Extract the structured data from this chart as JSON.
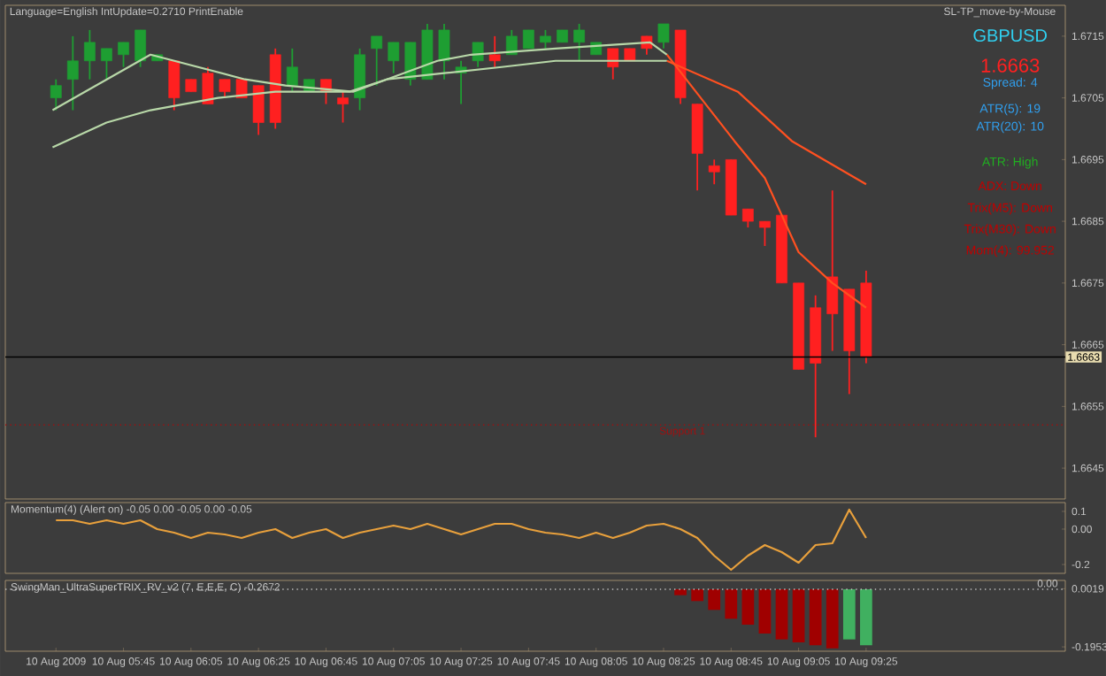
{
  "chart_data": [
    {
      "type": "candlestick",
      "x": [
        "2009-08-10T05:25",
        "2009-08-10T05:30",
        "2009-08-10T05:35",
        "2009-08-10T05:40",
        "2009-08-10T05:45",
        "2009-08-10T05:50",
        "2009-08-10T05:55",
        "2009-08-10T06:00",
        "2009-08-10T06:05",
        "2009-08-10T06:10",
        "2009-08-10T06:15",
        "2009-08-10T06:20",
        "2009-08-10T06:25",
        "2009-08-10T06:30",
        "2009-08-10T06:35",
        "2009-08-10T06:40",
        "2009-08-10T06:45",
        "2009-08-10T06:50",
        "2009-08-10T06:55",
        "2009-08-10T07:00",
        "2009-08-10T07:05",
        "2009-08-10T07:10",
        "2009-08-10T07:15",
        "2009-08-10T07:20",
        "2009-08-10T07:25",
        "2009-08-10T07:30",
        "2009-08-10T07:35",
        "2009-08-10T07:40",
        "2009-08-10T07:45",
        "2009-08-10T07:50",
        "2009-08-10T07:55",
        "2009-08-10T08:00",
        "2009-08-10T08:05",
        "2009-08-10T08:10",
        "2009-08-10T08:15",
        "2009-08-10T08:20",
        "2009-08-10T08:25",
        "2009-08-10T08:30",
        "2009-08-10T08:35",
        "2009-08-10T08:40",
        "2009-08-10T08:45",
        "2009-08-10T08:50",
        "2009-08-10T08:55",
        "2009-08-10T09:00",
        "2009-08-10T09:05",
        "2009-08-10T09:10",
        "2009-08-10T09:15",
        "2009-08-10T09:20",
        "2009-08-10T09:25"
      ],
      "ohlc": [
        [
          1.6705,
          1.6708,
          1.6703,
          1.6707
        ],
        [
          1.6708,
          1.6715,
          1.6703,
          1.6711
        ],
        [
          1.6711,
          1.6716,
          1.6708,
          1.6714
        ],
        [
          1.6711,
          1.6713,
          1.6708,
          1.6713
        ],
        [
          1.6712,
          1.6714,
          1.671,
          1.6714
        ],
        [
          1.6711,
          1.6716,
          1.671,
          1.6716
        ],
        [
          1.6711,
          1.6712,
          1.6711,
          1.6712
        ],
        [
          1.6711,
          1.6711,
          1.6703,
          1.6705
        ],
        [
          1.6708,
          1.6708,
          1.6706,
          1.6706
        ],
        [
          1.6709,
          1.671,
          1.6704,
          1.6704
        ],
        [
          1.6708,
          1.6708,
          1.6705,
          1.6706
        ],
        [
          1.6708,
          1.6708,
          1.6705,
          1.6705
        ],
        [
          1.6707,
          1.6707,
          1.6699,
          1.6701
        ],
        [
          1.6712,
          1.6713,
          1.67,
          1.6701
        ],
        [
          1.6707,
          1.6713,
          1.6706,
          1.671
        ],
        [
          1.6706,
          1.6708,
          1.6706,
          1.6708
        ],
        [
          1.6708,
          1.6708,
          1.6704,
          1.6706
        ],
        [
          1.6705,
          1.6706,
          1.6701,
          1.6704
        ],
        [
          1.6705,
          1.6713,
          1.6703,
          1.6712
        ],
        [
          1.6713,
          1.6715,
          1.6707,
          1.6715
        ],
        [
          1.6711,
          1.6714,
          1.6709,
          1.6714
        ],
        [
          1.6708,
          1.6714,
          1.6707,
          1.6714
        ],
        [
          1.6708,
          1.6717,
          1.6708,
          1.6716
        ],
        [
          1.6711,
          1.6717,
          1.6708,
          1.6716
        ],
        [
          1.6709,
          1.6711,
          1.6704,
          1.671
        ],
        [
          1.6711,
          1.6714,
          1.671,
          1.6714
        ],
        [
          1.6712,
          1.6715,
          1.671,
          1.6711
        ],
        [
          1.6712,
          1.6716,
          1.6712,
          1.6715
        ],
        [
          1.6713,
          1.6716,
          1.6713,
          1.6716
        ],
        [
          1.6714,
          1.6716,
          1.6713,
          1.6715
        ],
        [
          1.6714,
          1.6716,
          1.6714,
          1.6716
        ],
        [
          1.6714,
          1.6717,
          1.6711,
          1.6716
        ],
        [
          1.6712,
          1.6714,
          1.6712,
          1.6714
        ],
        [
          1.6713,
          1.6713,
          1.6708,
          1.671
        ],
        [
          1.6713,
          1.6713,
          1.6711,
          1.6711
        ],
        [
          1.6715,
          1.6715,
          1.6712,
          1.6713
        ],
        [
          1.6714,
          1.6717,
          1.6713,
          1.6717
        ],
        [
          1.6716,
          1.6716,
          1.6704,
          1.6705
        ],
        [
          1.6704,
          1.6704,
          1.669,
          1.6696
        ],
        [
          1.6694,
          1.6695,
          1.6691,
          1.6693
        ],
        [
          1.6695,
          1.6695,
          1.6686,
          1.6686
        ],
        [
          1.6687,
          1.6687,
          1.6684,
          1.6685
        ],
        [
          1.6685,
          1.6685,
          1.6681,
          1.6684
        ],
        [
          1.6686,
          1.6686,
          1.6675,
          1.6675
        ],
        [
          1.6675,
          1.6675,
          1.6661,
          1.6661
        ],
        [
          1.6671,
          1.6673,
          1.665,
          1.6662
        ],
        [
          1.6676,
          1.669,
          1.6664,
          1.667
        ],
        [
          1.6674,
          1.6674,
          1.6657,
          1.6664
        ],
        [
          1.6675,
          1.6677,
          1.6662,
          1.6663
        ]
      ],
      "colors": [
        "#1e9e32",
        "#1e9e32",
        "#1e9e32",
        "#1e9e32",
        "#1e9e32",
        "#1e9e32",
        "#1e9e32",
        "#ff2020",
        "#ff2020",
        "#ff2020",
        "#ff2020",
        "#ff2020",
        "#ff2020",
        "#ff2020",
        "#1e9e32",
        "#1e9e32",
        "#ff2020",
        "#ff2020",
        "#1e9e32",
        "#1e9e32",
        "#1e9e32",
        "#1e9e32",
        "#1e9e32",
        "#1e9e32",
        "#1e9e32",
        "#1e9e32",
        "#ff2020",
        "#1e9e32",
        "#1e9e32",
        "#1e9e32",
        "#1e9e32",
        "#1e9e32",
        "#1e9e32",
        "#ff2020",
        "#ff2020",
        "#ff2020",
        "#1e9e32",
        "#ff2020",
        "#ff2020",
        "#ff2020",
        "#ff2020",
        "#ff2020",
        "#ff2020",
        "#ff2020",
        "#ff2020",
        "#ff2020",
        "#ff2020",
        "#ff2020",
        "#ff2020"
      ],
      "series": [
        {
          "type": "line",
          "color": "#b8d8a8",
          "x": [
            "2009-08-10T05:24",
            "2009-08-10T05:53",
            "2009-08-10T06:21",
            "2009-08-10T06:33",
            "2009-08-10T06:53",
            "2009-08-10T07:03",
            "2009-08-10T07:18",
            "2009-08-10T07:28",
            "2009-08-10T07:53",
            "2009-08-10T08:21",
            "2009-08-10T08:26"
          ],
          "values": [
            1.6703,
            1.6712,
            1.6708,
            1.6707,
            1.6706,
            1.6708,
            1.6711,
            1.6712,
            1.6713,
            1.6714,
            1.6712
          ]
        },
        {
          "type": "line",
          "color": "#ff5020",
          "x": [
            "2009-08-10T08:26",
            "2009-08-10T08:36",
            "2009-08-10T08:46",
            "2009-08-10T08:55",
            "2009-08-10T09:05",
            "2009-08-10T09:15",
            "2009-08-10T09:25"
          ],
          "values": [
            1.6712,
            1.6705,
            1.6698,
            1.6692,
            1.668,
            1.6675,
            1.6671
          ]
        },
        {
          "type": "line",
          "color": "#b8d8a8",
          "x": [
            "2009-08-10T05:24",
            "2009-08-10T05:40",
            "2009-08-10T05:53",
            "2009-08-10T06:13",
            "2009-08-10T06:30",
            "2009-08-10T06:52",
            "2009-08-10T07:03",
            "2009-08-10T07:20",
            "2009-08-10T07:37",
            "2009-08-10T07:53",
            "2009-08-10T08:20",
            "2009-08-10T08:26"
          ],
          "values": [
            1.6697,
            1.6701,
            1.6703,
            1.6705,
            1.6706,
            1.6706,
            1.6708,
            1.6709,
            1.671,
            1.6711,
            1.6711,
            1.6711
          ]
        },
        {
          "type": "line",
          "color": "#ff5020",
          "x": [
            "2009-08-10T08:26",
            "2009-08-10T08:47",
            "2009-08-10T09:03",
            "2009-08-10T09:25"
          ],
          "values": [
            1.6711,
            1.6706,
            1.6698,
            1.6691
          ]
        }
      ],
      "xlim": [
        "2009-08-10T05:10",
        "2009-08-10T10:24"
      ],
      "ylim": [
        1.664,
        1.672
      ],
      "yticks": [
        1.6645,
        1.6655,
        1.6665,
        1.6675,
        1.6685,
        1.6695,
        1.6705,
        1.6715
      ],
      "tick_labels": "y",
      "ref_lines": [
        {
          "axis": "y",
          "value": 1.6663,
          "label": "1.6663",
          "color": "#000000"
        },
        {
          "axis": "y",
          "value": 1.6652,
          "label": "Support 1",
          "color": "#a01010",
          "line_style": "dotted"
        }
      ],
      "annotations": [
        "Language=English IntUpdate=0.2710 PrintEnable",
        "SL-TP_move-by-Mouse",
        "GBPUSD",
        "1.6663",
        "Spread: 4",
        "ATR(5): 19",
        "ATR(20): 10",
        "ATR: High",
        "ADX: Down",
        "Trix(M5): Down",
        "Trix(M30): Down",
        "Mom(4): 99.952"
      ]
    },
    {
      "type": "line",
      "title": "Momentum(4) (Alert on) -0.05 0.00 -0.05 0.00 -0.05",
      "color": "#e8a03c",
      "x": [
        "2009-08-10T05:25",
        "2009-08-10T05:30",
        "2009-08-10T05:35",
        "2009-08-10T05:40",
        "2009-08-10T05:45",
        "2009-08-10T05:50",
        "2009-08-10T05:55",
        "2009-08-10T06:00",
        "2009-08-10T06:05",
        "2009-08-10T06:10",
        "2009-08-10T06:15",
        "2009-08-10T06:20",
        "2009-08-10T06:25",
        "2009-08-10T06:30",
        "2009-08-10T06:35",
        "2009-08-10T06:40",
        "2009-08-10T06:45",
        "2009-08-10T06:50",
        "2009-08-10T06:55",
        "2009-08-10T07:00",
        "2009-08-10T07:05",
        "2009-08-10T07:10",
        "2009-08-10T07:15",
        "2009-08-10T07:20",
        "2009-08-10T07:25",
        "2009-08-10T07:30",
        "2009-08-10T07:35",
        "2009-08-10T07:40",
        "2009-08-10T07:45",
        "2009-08-10T07:50",
        "2009-08-10T07:55",
        "2009-08-10T08:00",
        "2009-08-10T08:05",
        "2009-08-10T08:10",
        "2009-08-10T08:15",
        "2009-08-10T08:20",
        "2009-08-10T08:25",
        "2009-08-10T08:30",
        "2009-08-10T08:35",
        "2009-08-10T08:40",
        "2009-08-10T08:45",
        "2009-08-10T08:50",
        "2009-08-10T08:55",
        "2009-08-10T09:00",
        "2009-08-10T09:05",
        "2009-08-10T09:10",
        "2009-08-10T09:15",
        "2009-08-10T09:20",
        "2009-08-10T09:25"
      ],
      "values": [
        0.05,
        0.05,
        0.03,
        0.05,
        0.03,
        0.05,
        0.0,
        -0.02,
        -0.05,
        -0.02,
        -0.03,
        -0.05,
        -0.02,
        0.0,
        -0.05,
        -0.02,
        0.0,
        -0.05,
        -0.02,
        0.0,
        0.02,
        0.0,
        0.03,
        0.0,
        -0.03,
        0.0,
        0.03,
        0.03,
        0.0,
        -0.02,
        -0.03,
        -0.05,
        -0.02,
        -0.05,
        -0.02,
        0.02,
        0.03,
        0.0,
        -0.05,
        -0.15,
        -0.23,
        -0.15,
        -0.09,
        -0.13,
        -0.19,
        -0.09,
        -0.08,
        0.11,
        -0.05
      ],
      "xlim": [
        "2009-08-10T05:10",
        "2009-08-10T10:24"
      ],
      "ylim": [
        -0.25,
        0.15
      ],
      "yticks": [
        0.1,
        {
          "value": 0,
          "label": "0.00"
        },
        -0.2
      ],
      "tick_labels": "y"
    },
    {
      "type": "bar",
      "title": "SwingMan_UltraSuperTRIX_RV_v2 (7, E,E,E, C) -0.2672",
      "x": [
        "2009-08-10T08:30",
        "2009-08-10T08:35",
        "2009-08-10T08:40",
        "2009-08-10T08:45",
        "2009-08-10T08:50",
        "2009-08-10T08:55",
        "2009-08-10T09:00",
        "2009-08-10T09:05",
        "2009-08-10T09:10",
        "2009-08-10T09:15",
        "2009-08-10T09:20",
        "2009-08-10T09:25"
      ],
      "values": [
        -0.02,
        -0.04,
        -0.07,
        -0.1,
        -0.12,
        -0.15,
        -0.17,
        -0.18,
        -0.19,
        -0.2,
        -0.17,
        -0.19
      ],
      "colors": [
        "#a00000",
        "#a00000",
        "#a00000",
        "#a00000",
        "#a00000",
        "#a00000",
        "#a00000",
        "#a00000",
        "#a00000",
        "#a00000",
        "#40b060",
        "#40b060"
      ],
      "xlim": [
        "2009-08-10T05:10",
        "2009-08-10T10:24"
      ],
      "xticks": [
        {
          "value": "2009-08-10T05:25",
          "label": "10 Aug 2009"
        },
        {
          "value": "2009-08-10T05:45",
          "label": "10 Aug 05:45"
        },
        {
          "value": "2009-08-10T06:05",
          "label": "10 Aug 06:05"
        },
        {
          "value": "2009-08-10T06:25",
          "label": "10 Aug 06:25"
        },
        {
          "value": "2009-08-10T06:45",
          "label": "10 Aug 06:45"
        },
        {
          "value": "2009-08-10T07:05",
          "label": "10 Aug 07:05"
        },
        {
          "value": "2009-08-10T07:25",
          "label": "10 Aug 07:25"
        },
        {
          "value": "2009-08-10T07:45",
          "label": "10 Aug 07:45"
        },
        {
          "value": "2009-08-10T08:05",
          "label": "10 Aug 08:05"
        },
        {
          "value": "2009-08-10T08:25",
          "label": "10 Aug 08:25"
        },
        {
          "value": "2009-08-10T08:45",
          "label": "10 Aug 08:45"
        },
        {
          "value": "2009-08-10T09:05",
          "label": "10 Aug 09:05"
        },
        {
          "value": "2009-08-10T09:25",
          "label": "10 Aug 09:25"
        }
      ],
      "ylim": [
        -0.21,
        0.03
      ],
      "yticks": [
        {
          "value": 0.0019,
          "label": "0.0019"
        },
        -0.1953
      ],
      "ref_lines": [
        {
          "axis": "y",
          "value": 0,
          "label": "0.00",
          "color": "#c0c0c0",
          "line_style": "dotted"
        }
      ]
    }
  ]
}
